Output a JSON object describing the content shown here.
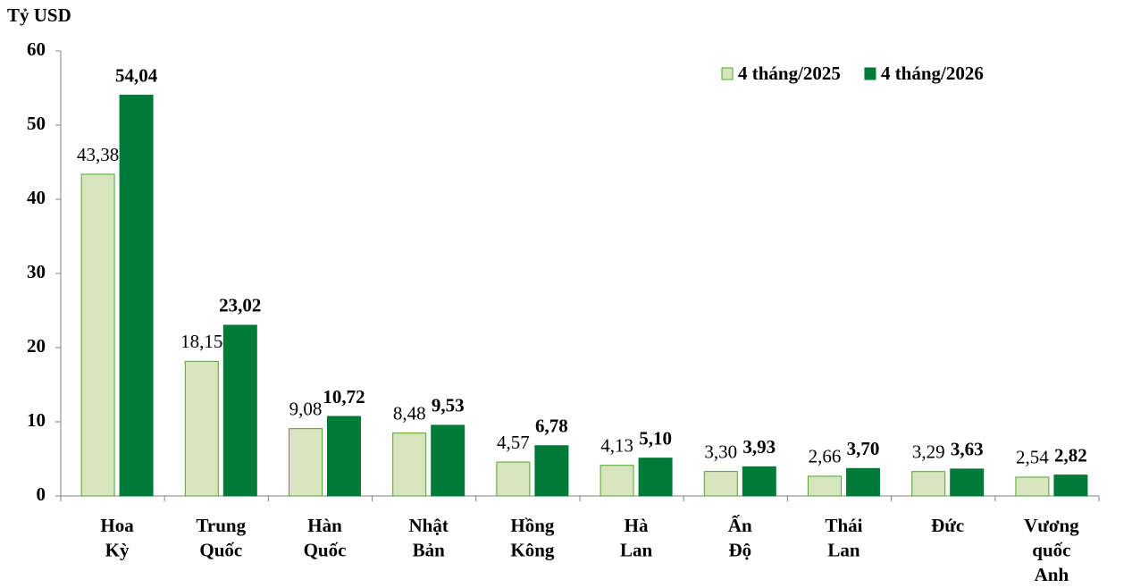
{
  "chart_data": {
    "type": "bar",
    "y_label": "Tỷ USD",
    "categories": [
      "Hoa Kỳ",
      "Trung Quốc",
      "Hàn Quốc",
      "Nhật Bản",
      "Hồng Kông",
      "Hà Lan",
      "Ấn Độ",
      "Thái Lan",
      "Đức",
      "Vương quốc Anh"
    ],
    "series": [
      {
        "name": "4 tháng/2025",
        "color": "#d7e4bd",
        "border": "#4ea72e",
        "values": [
          43.38,
          18.15,
          9.08,
          8.48,
          4.57,
          4.13,
          3.3,
          2.66,
          3.29,
          2.54
        ],
        "value_labels": [
          "43,38",
          "18,15",
          "9,08",
          "8,48",
          "4,57",
          "4,13",
          "3,30",
          "2,66",
          "3,29",
          "2,54"
        ]
      },
      {
        "name": "4 tháng/2026",
        "color": "#007a37",
        "border": "#007a37",
        "values": [
          54.04,
          23.02,
          10.72,
          9.53,
          6.78,
          5.1,
          3.93,
          3.7,
          3.63,
          2.82
        ],
        "value_labels": [
          "54,04",
          "23,02",
          "10,72",
          "9,53",
          "6,78",
          "5,10",
          "3,93",
          "3,70",
          "3,63",
          "2,82"
        ]
      }
    ],
    "ylim": [
      0,
      60
    ],
    "yticks": [
      0,
      10,
      20,
      30,
      40,
      50,
      60
    ],
    "legend": "top-right"
  }
}
